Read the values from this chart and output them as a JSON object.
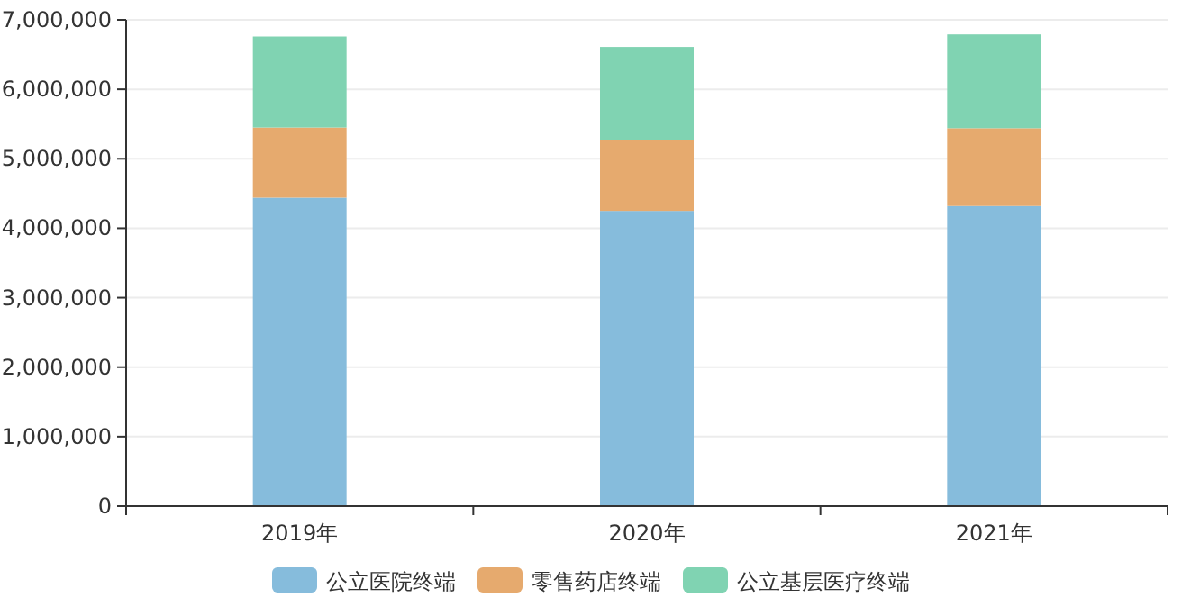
{
  "chart_data": {
    "type": "bar",
    "stacked": true,
    "categories": [
      "2019年",
      "2020年",
      "2021年"
    ],
    "series": [
      {
        "name": "公立医院终端",
        "color": "#86bcdc",
        "values": [
          4440000,
          4250000,
          4320000
        ]
      },
      {
        "name": "零售药店终端",
        "color": "#e6aa6e",
        "values": [
          1010000,
          1020000,
          1120000
        ]
      },
      {
        "name": "公立基层医疗终端",
        "color": "#80d3b2",
        "values": [
          1310000,
          1340000,
          1350000
        ]
      }
    ],
    "ylim": [
      0,
      7000000
    ],
    "yticks": [
      {
        "value": 0,
        "label": "0"
      },
      {
        "value": 1000000,
        "label": "1,000,000"
      },
      {
        "value": 2000000,
        "label": "2,000,000"
      },
      {
        "value": 3000000,
        "label": "3,000,000"
      },
      {
        "value": 4000000,
        "label": "4,000,000"
      },
      {
        "value": 5000000,
        "label": "5,000,000"
      },
      {
        "value": 6000000,
        "label": "6,000,000"
      },
      {
        "value": 7000000,
        "label": "7,000,000"
      }
    ],
    "grid": "y",
    "legend": "bottom"
  }
}
